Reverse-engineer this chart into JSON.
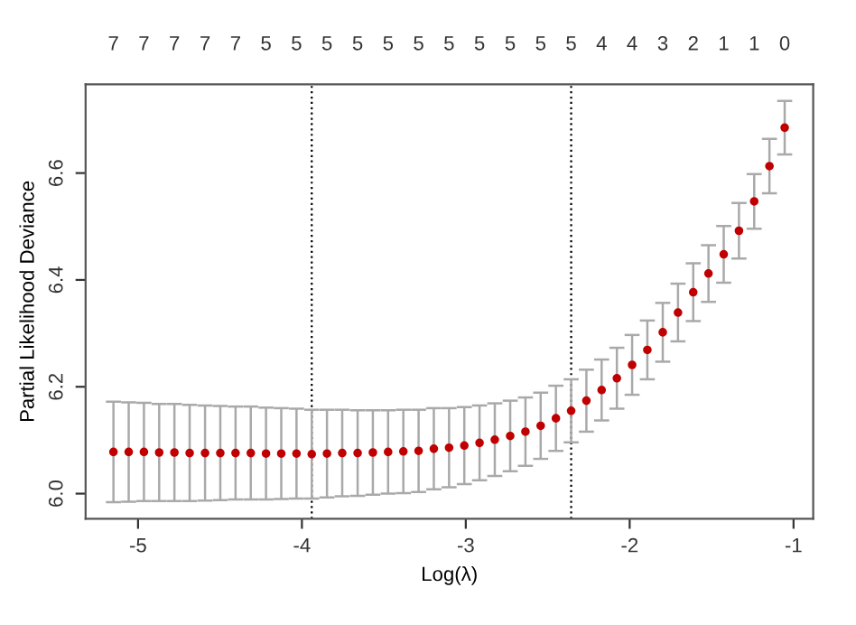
{
  "chart_data": {
    "type": "scatter",
    "xlabel": "Log(λ)",
    "ylabel": "Partial Likelihood Deviance",
    "x": [
      -5.15,
      -5.057,
      -4.964,
      -4.871,
      -4.778,
      -4.685,
      -4.591,
      -4.498,
      -4.405,
      -4.312,
      -4.219,
      -4.126,
      -4.033,
      -3.94,
      -3.847,
      -3.754,
      -3.66,
      -3.567,
      -3.474,
      -3.381,
      -3.288,
      -3.195,
      -3.102,
      -3.009,
      -2.916,
      -2.823,
      -2.729,
      -2.636,
      -2.543,
      -2.45,
      -2.357,
      -2.264,
      -2.171,
      -2.078,
      -1.985,
      -1.892,
      -1.798,
      -1.705,
      -1.612,
      -1.519,
      -1.426,
      -1.333,
      -1.24,
      -1.147,
      -1.054
    ],
    "series": [
      {
        "color": "#c00000",
        "values": [
          6.078,
          6.078,
          6.078,
          6.077,
          6.077,
          6.076,
          6.076,
          6.076,
          6.076,
          6.076,
          6.075,
          6.075,
          6.075,
          6.074,
          6.075,
          6.076,
          6.076,
          6.077,
          6.078,
          6.079,
          6.08,
          6.084,
          6.086,
          6.09,
          6.095,
          6.101,
          6.108,
          6.116,
          6.127,
          6.141,
          6.155,
          6.174,
          6.194,
          6.216,
          6.241,
          6.269,
          6.302,
          6.339,
          6.377,
          6.412,
          6.448,
          6.492,
          6.547,
          6.613,
          6.685
        ],
        "errors": [
          0.094,
          0.093,
          0.092,
          0.091,
          0.091,
          0.09,
          0.089,
          0.088,
          0.087,
          0.087,
          0.086,
          0.085,
          0.084,
          0.083,
          0.082,
          0.081,
          0.08,
          0.079,
          0.078,
          0.078,
          0.077,
          0.076,
          0.074,
          0.072,
          0.07,
          0.068,
          0.066,
          0.064,
          0.062,
          0.061,
          0.059,
          0.058,
          0.057,
          0.057,
          0.056,
          0.055,
          0.055,
          0.054,
          0.054,
          0.053,
          0.053,
          0.052,
          0.051,
          0.051,
          0.05
        ]
      }
    ],
    "marker": "circle",
    "xlim": [
      -5.32,
      -0.88
    ],
    "xticks": [
      -5,
      -4,
      -3,
      -2,
      -1
    ],
    "ylim": [
      5.953,
      6.766
    ],
    "yticks": [
      {
        "value": 6.0,
        "label": "6.0"
      },
      {
        "value": 6.2,
        "label": "6.2"
      },
      {
        "value": 6.4,
        "label": "6.4"
      },
      {
        "value": 6.6,
        "label": "6.6"
      }
    ],
    "annotations": [
      "7",
      "7",
      "7",
      "7",
      "7",
      "5",
      "5",
      "5",
      "5",
      "5",
      "5",
      "5",
      "5",
      "5",
      "5",
      "5",
      "4",
      "4",
      "3",
      "2",
      "1",
      "1",
      "0"
    ],
    "ref_lines": [
      {
        "axis": "x",
        "value": -3.94,
        "label": null,
        "color": "#000000",
        "line_style": "dotted"
      },
      {
        "axis": "x",
        "value": -2.357,
        "label": null,
        "color": "#000000",
        "line_style": "dotted"
      }
    ],
    "grid": false,
    "legend": false
  }
}
